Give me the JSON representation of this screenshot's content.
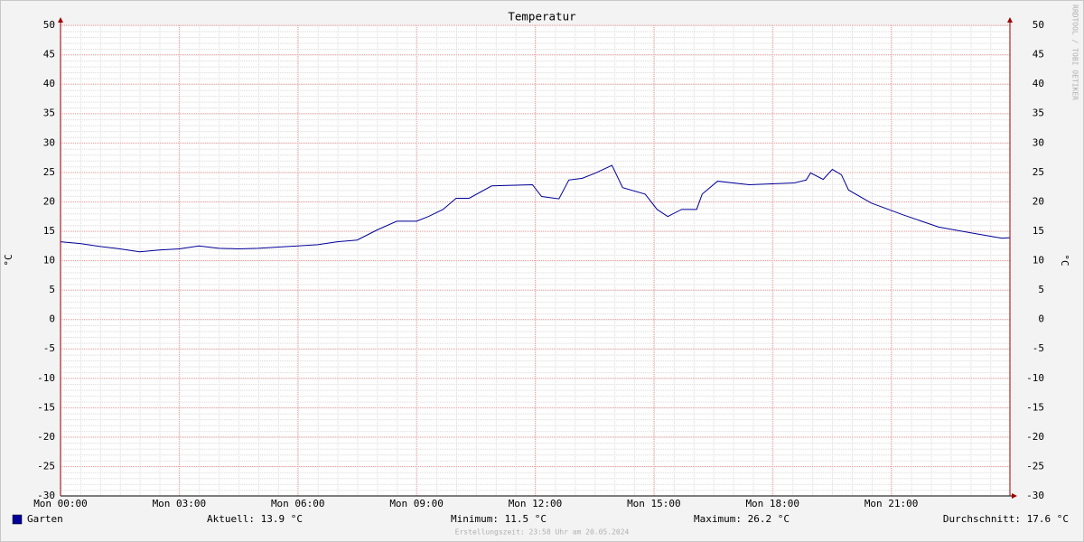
{
  "chart_data": {
    "type": "line",
    "title": "Temperatur",
    "ylabel": "°C",
    "watermark": "RRDTOOL / TOBI OETIKER",
    "footer": "Erstellungszeit: 23:58 Uhr am 20.05.2024",
    "xlim": [
      0,
      24
    ],
    "xticks": [
      {
        "value": 0,
        "label": "Mon 00:00"
      },
      {
        "value": 3,
        "label": "Mon 03:00"
      },
      {
        "value": 6,
        "label": "Mon 06:00"
      },
      {
        "value": 9,
        "label": "Mon 09:00"
      },
      {
        "value": 12,
        "label": "Mon 12:00"
      },
      {
        "value": 15,
        "label": "Mon 15:00"
      },
      {
        "value": 18,
        "label": "Mon 18:00"
      },
      {
        "value": 21,
        "label": "Mon 21:00"
      }
    ],
    "ylim": [
      -30,
      50
    ],
    "yticks": [
      -30,
      -25,
      -20,
      -15,
      -10,
      -5,
      0,
      5,
      10,
      15,
      20,
      25,
      30,
      35,
      40,
      45,
      50
    ],
    "grid": true,
    "series": [
      {
        "name": "Garten",
        "color": "#000099",
        "x": [
          0,
          0.5,
          1,
          1.5,
          2,
          2.5,
          3,
          3.5,
          4,
          4.5,
          5,
          5.5,
          6,
          6.5,
          7,
          7.5,
          8,
          8.5,
          9,
          9.3,
          9.67,
          10,
          10.33,
          10.9,
          11.93,
          12.16,
          12.6,
          12.85,
          13.19,
          13.53,
          13.94,
          14.21,
          14.78,
          15.08,
          15.35,
          15.7,
          16.08,
          16.22,
          16.61,
          17.41,
          18.55,
          18.85,
          18.96,
          19.28,
          19.51,
          19.74,
          19.92,
          20.49,
          21.29,
          22.2,
          23.11,
          23.8,
          24
        ],
        "values": [
          13.2,
          12.9,
          12.4,
          12.0,
          11.5,
          11.8,
          12.0,
          12.5,
          12.1,
          12.0,
          12.1,
          12.3,
          12.5,
          12.7,
          13.2,
          13.5,
          15.2,
          16.7,
          16.7,
          17.5,
          18.7,
          20.6,
          20.6,
          22.7,
          22.9,
          20.9,
          20.5,
          23.7,
          24.0,
          24.9,
          26.2,
          22.4,
          21.3,
          18.7,
          17.5,
          18.7,
          18.7,
          21.3,
          23.5,
          22.9,
          23.2,
          23.7,
          24.9,
          23.8,
          25.5,
          24.6,
          22.0,
          19.8,
          17.8,
          15.7,
          14.6,
          13.8,
          13.9
        ]
      }
    ],
    "stats": [
      "Aktuell: 13.9 °C",
      "Minimum: 11.5 °C",
      "Maximum: 26.2 °C",
      "Durchschnitt: 17.6 °C"
    ]
  }
}
